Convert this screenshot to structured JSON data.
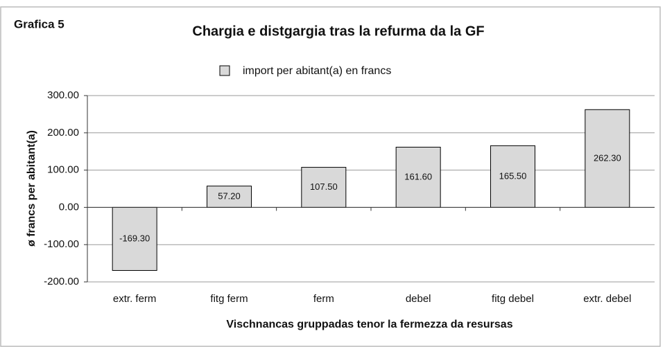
{
  "chart_data": {
    "type": "bar",
    "label": "Grafica 5",
    "title": "Chargia e distgargia tras la refurma da la GF",
    "x_label": "Vischnancas gruppadas tenor la fermezza da resursas",
    "y_label": "ø francs per abitant(a)",
    "categories": [
      "extr. ferm",
      "fitg ferm",
      "ferm",
      "debel",
      "fitg debel",
      "extr. debel"
    ],
    "series": [
      {
        "name": "import per abitant(a) en francs",
        "color": "#d9d9d9",
        "values": [
          -169.3,
          57.2,
          107.5,
          161.6,
          165.5,
          262.3
        ],
        "value_labels": [
          "-169.30",
          "57.20",
          "107.50",
          "161.60",
          "165.50",
          "262.30"
        ]
      }
    ],
    "ylim": [
      -200,
      300
    ],
    "yticks": [
      {
        "value": -200,
        "label": "-200.00"
      },
      {
        "value": -100,
        "label": "-100.00"
      },
      {
        "value": 0,
        "label": "0.00"
      },
      {
        "value": 100,
        "label": "100.00"
      },
      {
        "value": 200,
        "label": "200.00"
      },
      {
        "value": 300,
        "label": "300.00"
      }
    ],
    "grid": true,
    "legend": "top"
  }
}
